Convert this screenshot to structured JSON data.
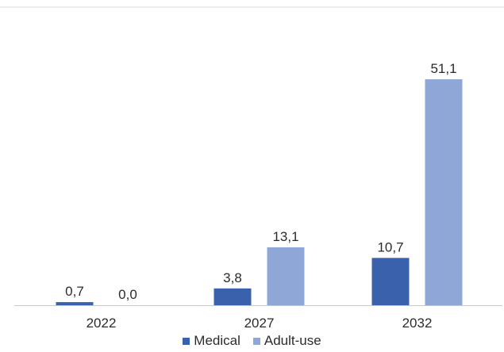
{
  "chart_data": {
    "type": "bar",
    "categories": [
      "2022",
      "2027",
      "2032"
    ],
    "series": [
      {
        "name": "Medical",
        "values": [
          0.7,
          3.8,
          10.7
        ],
        "labels": [
          "0,7",
          "3,8",
          "10,7"
        ],
        "color": "#3a62ac"
      },
      {
        "name": "Adult-use",
        "values": [
          0.0,
          13.1,
          51.1
        ],
        "labels": [
          "0,0",
          "13,1",
          "51,1"
        ],
        "color": "#8fa7d6"
      }
    ],
    "title": "",
    "xlabel": "",
    "ylabel": "",
    "ylim": [
      0,
      55
    ],
    "grid": false,
    "legend_position": "bottom"
  }
}
